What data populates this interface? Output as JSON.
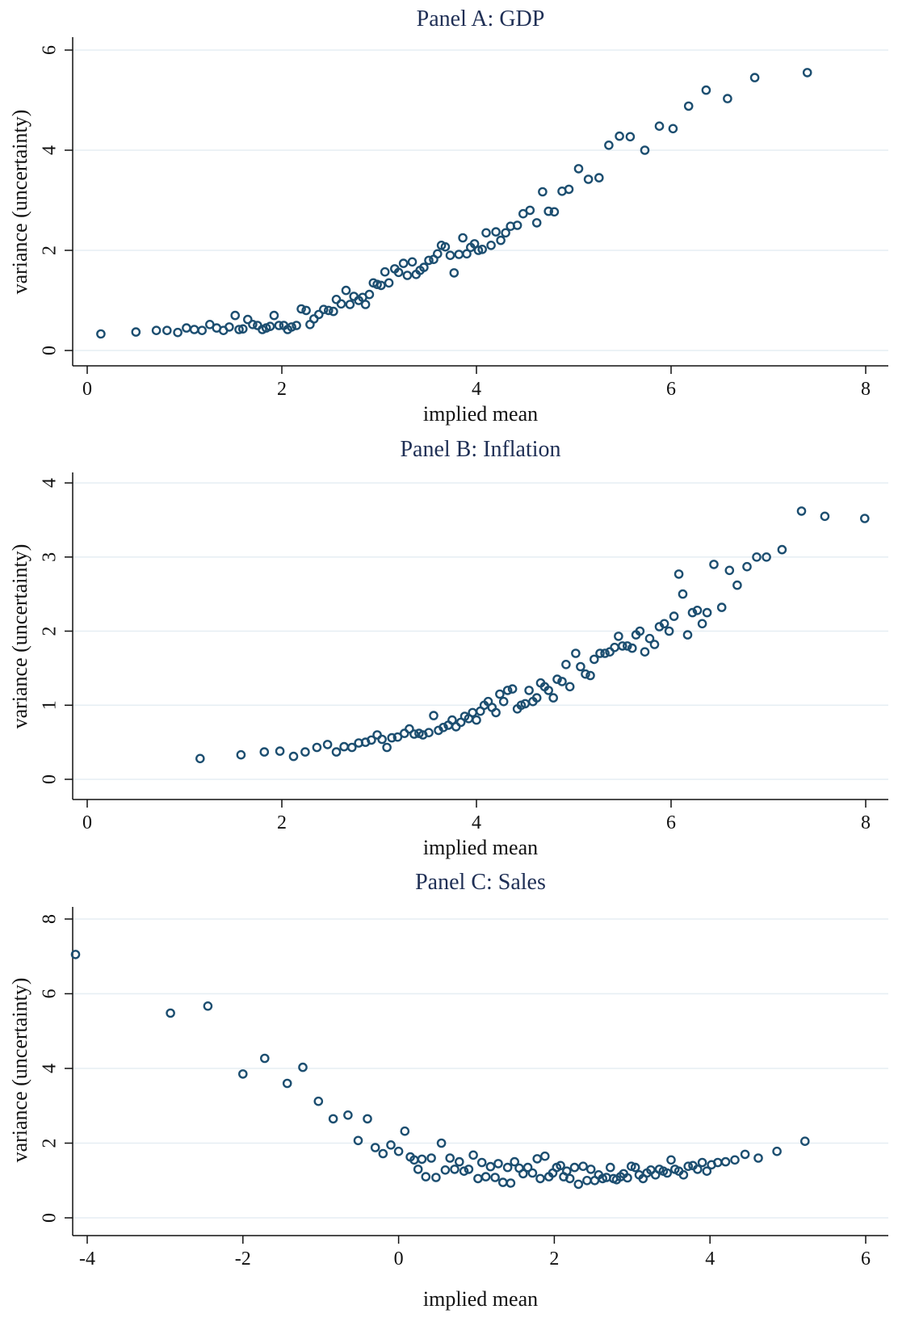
{
  "chart_data": [
    {
      "type": "scatter",
      "title": "Panel A: GDP",
      "xlabel": "implied mean",
      "ylabel": "variance (uncertainty)",
      "xlim": [
        0,
        8
      ],
      "ylim": [
        0,
        6
      ],
      "xticks": [
        0,
        2,
        4,
        6,
        8
      ],
      "yticks": [
        0,
        2,
        4,
        6
      ],
      "grid": true,
      "marker_color": "#1c4e70",
      "points": [
        [
          0.14,
          0.33
        ],
        [
          0.5,
          0.37
        ],
        [
          0.71,
          0.4
        ],
        [
          0.82,
          0.4
        ],
        [
          0.93,
          0.36
        ],
        [
          1.02,
          0.45
        ],
        [
          1.1,
          0.42
        ],
        [
          1.18,
          0.4
        ],
        [
          1.26,
          0.52
        ],
        [
          1.33,
          0.45
        ],
        [
          1.4,
          0.4
        ],
        [
          1.46,
          0.47
        ],
        [
          1.52,
          0.7
        ],
        [
          1.56,
          0.42
        ],
        [
          1.6,
          0.43
        ],
        [
          1.65,
          0.62
        ],
        [
          1.7,
          0.52
        ],
        [
          1.75,
          0.5
        ],
        [
          1.8,
          0.42
        ],
        [
          1.84,
          0.45
        ],
        [
          1.88,
          0.48
        ],
        [
          1.92,
          0.7
        ],
        [
          1.97,
          0.5
        ],
        [
          2.02,
          0.5
        ],
        [
          2.06,
          0.42
        ],
        [
          2.1,
          0.47
        ],
        [
          2.15,
          0.5
        ],
        [
          2.2,
          0.83
        ],
        [
          2.25,
          0.8
        ],
        [
          2.29,
          0.52
        ],
        [
          2.33,
          0.63
        ],
        [
          2.38,
          0.72
        ],
        [
          2.43,
          0.82
        ],
        [
          2.48,
          0.8
        ],
        [
          2.53,
          0.78
        ],
        [
          2.56,
          1.02
        ],
        [
          2.61,
          0.93
        ],
        [
          2.66,
          1.2
        ],
        [
          2.7,
          0.92
        ],
        [
          2.74,
          1.08
        ],
        [
          2.79,
          1.0
        ],
        [
          2.83,
          1.06
        ],
        [
          2.86,
          0.92
        ],
        [
          2.9,
          1.12
        ],
        [
          2.94,
          1.35
        ],
        [
          2.98,
          1.32
        ],
        [
          3.02,
          1.3
        ],
        [
          3.06,
          1.57
        ],
        [
          3.1,
          1.35
        ],
        [
          3.16,
          1.63
        ],
        [
          3.2,
          1.56
        ],
        [
          3.25,
          1.74
        ],
        [
          3.29,
          1.5
        ],
        [
          3.34,
          1.77
        ],
        [
          3.38,
          1.52
        ],
        [
          3.42,
          1.6
        ],
        [
          3.46,
          1.66
        ],
        [
          3.51,
          1.8
        ],
        [
          3.56,
          1.82
        ],
        [
          3.6,
          1.93
        ],
        [
          3.64,
          2.1
        ],
        [
          3.68,
          2.07
        ],
        [
          3.73,
          1.9
        ],
        [
          3.77,
          1.55
        ],
        [
          3.82,
          1.92
        ],
        [
          3.86,
          2.25
        ],
        [
          3.9,
          1.93
        ],
        [
          3.94,
          2.06
        ],
        [
          3.98,
          2.13
        ],
        [
          4.02,
          2.0
        ],
        [
          4.06,
          2.02
        ],
        [
          4.1,
          2.35
        ],
        [
          4.15,
          2.1
        ],
        [
          4.2,
          2.37
        ],
        [
          4.25,
          2.2
        ],
        [
          4.3,
          2.35
        ],
        [
          4.35,
          2.48
        ],
        [
          4.42,
          2.5
        ],
        [
          4.48,
          2.73
        ],
        [
          4.55,
          2.8
        ],
        [
          4.62,
          2.55
        ],
        [
          4.68,
          3.17
        ],
        [
          4.74,
          2.78
        ],
        [
          4.8,
          2.77
        ],
        [
          4.88,
          3.18
        ],
        [
          4.95,
          3.22
        ],
        [
          5.05,
          3.63
        ],
        [
          5.15,
          3.42
        ],
        [
          5.26,
          3.45
        ],
        [
          5.36,
          4.1
        ],
        [
          5.47,
          4.28
        ],
        [
          5.58,
          4.27
        ],
        [
          5.73,
          4.0
        ],
        [
          5.88,
          4.48
        ],
        [
          6.02,
          4.43
        ],
        [
          6.18,
          4.88
        ],
        [
          6.36,
          5.2
        ],
        [
          6.58,
          5.03
        ],
        [
          6.86,
          5.45
        ],
        [
          7.4,
          5.55
        ]
      ]
    },
    {
      "type": "scatter",
      "title": "Panel B: Inflation",
      "xlabel": "implied mean",
      "ylabel": "variance (uncertainty)",
      "xlim": [
        0,
        8
      ],
      "ylim": [
        0,
        4
      ],
      "xticks": [
        0,
        2,
        4,
        6,
        8
      ],
      "yticks": [
        0,
        1,
        2,
        3,
        4
      ],
      "grid": true,
      "marker_color": "#1c4e70",
      "points": [
        [
          1.16,
          0.28
        ],
        [
          1.58,
          0.33
        ],
        [
          1.82,
          0.37
        ],
        [
          1.98,
          0.38
        ],
        [
          2.12,
          0.31
        ],
        [
          2.24,
          0.37
        ],
        [
          2.36,
          0.43
        ],
        [
          2.47,
          0.47
        ],
        [
          2.56,
          0.37
        ],
        [
          2.64,
          0.44
        ],
        [
          2.72,
          0.43
        ],
        [
          2.79,
          0.49
        ],
        [
          2.86,
          0.5
        ],
        [
          2.92,
          0.53
        ],
        [
          2.98,
          0.6
        ],
        [
          3.03,
          0.54
        ],
        [
          3.08,
          0.43
        ],
        [
          3.13,
          0.56
        ],
        [
          3.19,
          0.57
        ],
        [
          3.26,
          0.62
        ],
        [
          3.31,
          0.68
        ],
        [
          3.36,
          0.61
        ],
        [
          3.41,
          0.62
        ],
        [
          3.45,
          0.6
        ],
        [
          3.51,
          0.63
        ],
        [
          3.56,
          0.86
        ],
        [
          3.61,
          0.66
        ],
        [
          3.66,
          0.7
        ],
        [
          3.71,
          0.73
        ],
        [
          3.75,
          0.8
        ],
        [
          3.79,
          0.71
        ],
        [
          3.84,
          0.77
        ],
        [
          3.88,
          0.85
        ],
        [
          3.92,
          0.82
        ],
        [
          3.96,
          0.9
        ],
        [
          4.0,
          0.8
        ],
        [
          4.04,
          0.92
        ],
        [
          4.08,
          1.0
        ],
        [
          4.12,
          1.05
        ],
        [
          4.16,
          0.97
        ],
        [
          4.2,
          0.9
        ],
        [
          4.24,
          1.15
        ],
        [
          4.28,
          1.05
        ],
        [
          4.32,
          1.2
        ],
        [
          4.37,
          1.22
        ],
        [
          4.42,
          0.95
        ],
        [
          4.46,
          1.0
        ],
        [
          4.5,
          1.02
        ],
        [
          4.54,
          1.2
        ],
        [
          4.58,
          1.05
        ],
        [
          4.62,
          1.1
        ],
        [
          4.66,
          1.3
        ],
        [
          4.7,
          1.25
        ],
        [
          4.74,
          1.2
        ],
        [
          4.79,
          1.1
        ],
        [
          4.83,
          1.35
        ],
        [
          4.88,
          1.32
        ],
        [
          4.92,
          1.55
        ],
        [
          4.96,
          1.25
        ],
        [
          5.02,
          1.7
        ],
        [
          5.07,
          1.52
        ],
        [
          5.12,
          1.42
        ],
        [
          5.17,
          1.4
        ],
        [
          5.21,
          1.62
        ],
        [
          5.27,
          1.7
        ],
        [
          5.32,
          1.7
        ],
        [
          5.37,
          1.72
        ],
        [
          5.42,
          1.78
        ],
        [
          5.46,
          1.93
        ],
        [
          5.5,
          1.8
        ],
        [
          5.55,
          1.8
        ],
        [
          5.6,
          1.77
        ],
        [
          5.64,
          1.95
        ],
        [
          5.68,
          2.0
        ],
        [
          5.73,
          1.72
        ],
        [
          5.78,
          1.9
        ],
        [
          5.83,
          1.82
        ],
        [
          5.88,
          2.06
        ],
        [
          5.93,
          2.1
        ],
        [
          5.98,
          2.0
        ],
        [
          6.03,
          2.2
        ],
        [
          6.08,
          2.77
        ],
        [
          6.12,
          2.5
        ],
        [
          6.17,
          1.95
        ],
        [
          6.22,
          2.25
        ],
        [
          6.27,
          2.28
        ],
        [
          6.32,
          2.1
        ],
        [
          6.37,
          2.25
        ],
        [
          6.44,
          2.9
        ],
        [
          6.52,
          2.32
        ],
        [
          6.6,
          2.82
        ],
        [
          6.68,
          2.62
        ],
        [
          6.78,
          2.87
        ],
        [
          6.88,
          3.0
        ],
        [
          6.98,
          3.0
        ],
        [
          7.14,
          3.1
        ],
        [
          7.34,
          3.62
        ],
        [
          7.58,
          3.55
        ],
        [
          7.99,
          3.52
        ]
      ]
    },
    {
      "type": "scatter",
      "title": "Panel C: Sales",
      "xlabel": "implied mean",
      "ylabel": "variance (uncertainty)",
      "xlim": [
        -4,
        6
      ],
      "ylim": [
        0,
        8
      ],
      "xticks": [
        -4,
        -2,
        0,
        2,
        4,
        6
      ],
      "yticks": [
        0,
        2,
        4,
        6,
        8
      ],
      "grid": true,
      "marker_color": "#1c4e70",
      "points": [
        [
          -4.15,
          7.05
        ],
        [
          -2.93,
          5.48
        ],
        [
          -2.45,
          5.67
        ],
        [
          -2.0,
          3.85
        ],
        [
          -1.72,
          4.27
        ],
        [
          -1.43,
          3.6
        ],
        [
          -1.23,
          4.03
        ],
        [
          -1.03,
          3.12
        ],
        [
          -0.84,
          2.65
        ],
        [
          -0.65,
          2.75
        ],
        [
          -0.52,
          2.07
        ],
        [
          -0.4,
          2.65
        ],
        [
          -0.3,
          1.88
        ],
        [
          -0.2,
          1.72
        ],
        [
          -0.1,
          1.95
        ],
        [
          0.0,
          1.78
        ],
        [
          0.08,
          2.32
        ],
        [
          0.15,
          1.63
        ],
        [
          0.2,
          1.55
        ],
        [
          0.25,
          1.3
        ],
        [
          0.3,
          1.57
        ],
        [
          0.35,
          1.1
        ],
        [
          0.42,
          1.6
        ],
        [
          0.48,
          1.08
        ],
        [
          0.55,
          2.0
        ],
        [
          0.6,
          1.28
        ],
        [
          0.66,
          1.6
        ],
        [
          0.72,
          1.3
        ],
        [
          0.78,
          1.5
        ],
        [
          0.84,
          1.25
        ],
        [
          0.9,
          1.3
        ],
        [
          0.96,
          1.68
        ],
        [
          1.02,
          1.05
        ],
        [
          1.07,
          1.48
        ],
        [
          1.12,
          1.1
        ],
        [
          1.18,
          1.37
        ],
        [
          1.24,
          1.08
        ],
        [
          1.28,
          1.45
        ],
        [
          1.34,
          0.95
        ],
        [
          1.4,
          1.35
        ],
        [
          1.44,
          0.93
        ],
        [
          1.49,
          1.5
        ],
        [
          1.55,
          1.33
        ],
        [
          1.6,
          1.18
        ],
        [
          1.66,
          1.35
        ],
        [
          1.72,
          1.2
        ],
        [
          1.78,
          1.58
        ],
        [
          1.82,
          1.05
        ],
        [
          1.88,
          1.65
        ],
        [
          1.93,
          1.1
        ],
        [
          1.98,
          1.2
        ],
        [
          2.03,
          1.35
        ],
        [
          2.08,
          1.4
        ],
        [
          2.12,
          1.1
        ],
        [
          2.16,
          1.25
        ],
        [
          2.2,
          1.05
        ],
        [
          2.26,
          1.35
        ],
        [
          2.31,
          0.9
        ],
        [
          2.37,
          1.38
        ],
        [
          2.42,
          1.0
        ],
        [
          2.47,
          1.3
        ],
        [
          2.52,
          1.0
        ],
        [
          2.57,
          1.15
        ],
        [
          2.62,
          1.05
        ],
        [
          2.67,
          1.08
        ],
        [
          2.72,
          1.35
        ],
        [
          2.76,
          1.05
        ],
        [
          2.8,
          1.02
        ],
        [
          2.85,
          1.1
        ],
        [
          2.89,
          1.18
        ],
        [
          2.94,
          1.07
        ],
        [
          2.99,
          1.38
        ],
        [
          3.04,
          1.35
        ],
        [
          3.09,
          1.15
        ],
        [
          3.14,
          1.05
        ],
        [
          3.19,
          1.2
        ],
        [
          3.24,
          1.28
        ],
        [
          3.3,
          1.15
        ],
        [
          3.35,
          1.3
        ],
        [
          3.4,
          1.25
        ],
        [
          3.45,
          1.2
        ],
        [
          3.5,
          1.55
        ],
        [
          3.55,
          1.3
        ],
        [
          3.6,
          1.25
        ],
        [
          3.66,
          1.15
        ],
        [
          3.72,
          1.38
        ],
        [
          3.78,
          1.4
        ],
        [
          3.84,
          1.3
        ],
        [
          3.9,
          1.48
        ],
        [
          3.96,
          1.25
        ],
        [
          4.02,
          1.42
        ],
        [
          4.1,
          1.48
        ],
        [
          4.2,
          1.5
        ],
        [
          4.32,
          1.55
        ],
        [
          4.45,
          1.7
        ],
        [
          4.62,
          1.6
        ],
        [
          4.86,
          1.78
        ],
        [
          5.22,
          2.05
        ]
      ]
    }
  ]
}
